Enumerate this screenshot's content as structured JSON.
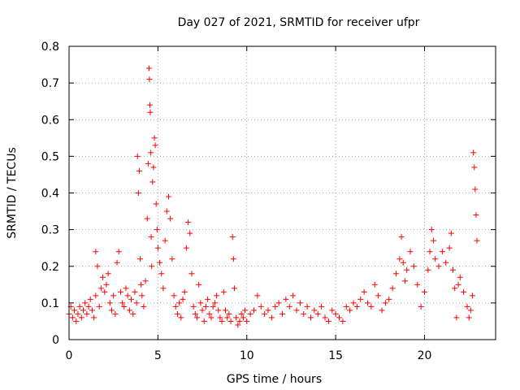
{
  "chart_data": {
    "type": "scatter",
    "title": "Day 027 of 2021, SRMTID for receiver ufpr",
    "xlabel": "GPS time / hours",
    "ylabel": "SRMTID / TECUs",
    "xlim": [
      0,
      24
    ],
    "ylim": [
      0,
      0.8
    ],
    "grid": true,
    "xticks": [
      0,
      5,
      10,
      15,
      20
    ],
    "yticks": [
      0,
      0.1,
      0.2,
      0.3,
      0.4,
      0.5,
      0.6,
      0.7,
      0.8
    ],
    "xtick_labels": [
      "0",
      "5",
      "10",
      "15",
      "20"
    ],
    "ytick_labels": [
      "0",
      "0.1",
      "0.2",
      "0.3",
      "0.4",
      "0.5",
      "0.6",
      "0.7",
      "0.8"
    ],
    "colors": {
      "series": "#ff0000",
      "grid": "#a0a0a0",
      "axis": "#000000"
    },
    "series": [
      {
        "name": "SRMTID",
        "marker": "+",
        "points": [
          [
            0.0,
            0.07
          ],
          [
            0.1,
            0.09
          ],
          [
            0.2,
            0.06
          ],
          [
            0.3,
            0.08
          ],
          [
            0.4,
            0.05
          ],
          [
            0.5,
            0.07
          ],
          [
            0.6,
            0.09
          ],
          [
            0.7,
            0.06
          ],
          [
            0.8,
            0.08
          ],
          [
            0.9,
            0.1
          ],
          [
            1.0,
            0.07
          ],
          [
            1.1,
            0.09
          ],
          [
            1.2,
            0.11
          ],
          [
            1.3,
            0.08
          ],
          [
            1.4,
            0.06
          ],
          [
            1.5,
            0.12
          ],
          [
            1.5,
            0.24
          ],
          [
            1.6,
            0.2
          ],
          [
            1.7,
            0.09
          ],
          [
            1.8,
            0.14
          ],
          [
            1.9,
            0.17
          ],
          [
            2.0,
            0.13
          ],
          [
            2.1,
            0.15
          ],
          [
            2.2,
            0.18
          ],
          [
            2.3,
            0.1
          ],
          [
            2.4,
            0.08
          ],
          [
            2.5,
            0.12
          ],
          [
            2.6,
            0.07
          ],
          [
            2.7,
            0.21
          ],
          [
            2.8,
            0.24
          ],
          [
            2.9,
            0.13
          ],
          [
            3.0,
            0.1
          ],
          [
            3.1,
            0.09
          ],
          [
            3.2,
            0.14
          ],
          [
            3.3,
            0.12
          ],
          [
            3.4,
            0.08
          ],
          [
            3.5,
            0.11
          ],
          [
            3.6,
            0.07
          ],
          [
            3.7,
            0.13
          ],
          [
            3.8,
            0.1
          ],
          [
            3.85,
            0.5
          ],
          [
            3.9,
            0.4
          ],
          [
            3.95,
            0.46
          ],
          [
            4.0,
            0.22
          ],
          [
            4.05,
            0.15
          ],
          [
            4.1,
            0.12
          ],
          [
            4.2,
            0.09
          ],
          [
            4.3,
            0.16
          ],
          [
            4.4,
            0.33
          ],
          [
            4.45,
            0.48
          ],
          [
            4.5,
            0.74
          ],
          [
            4.52,
            0.71
          ],
          [
            4.55,
            0.64
          ],
          [
            4.57,
            0.62
          ],
          [
            4.6,
            0.51
          ],
          [
            4.62,
            0.28
          ],
          [
            4.65,
            0.2
          ],
          [
            4.7,
            0.43
          ],
          [
            4.75,
            0.47
          ],
          [
            4.8,
            0.55
          ],
          [
            4.85,
            0.53
          ],
          [
            4.9,
            0.37
          ],
          [
            4.95,
            0.3
          ],
          [
            5.0,
            0.25
          ],
          [
            5.1,
            0.21
          ],
          [
            5.2,
            0.18
          ],
          [
            5.3,
            0.14
          ],
          [
            5.4,
            0.27
          ],
          [
            5.5,
            0.35
          ],
          [
            5.6,
            0.39
          ],
          [
            5.7,
            0.33
          ],
          [
            5.8,
            0.22
          ],
          [
            5.9,
            0.12
          ],
          [
            6.0,
            0.09
          ],
          [
            6.1,
            0.07
          ],
          [
            6.2,
            0.1
          ],
          [
            6.3,
            0.06
          ],
          [
            6.4,
            0.11
          ],
          [
            6.5,
            0.13
          ],
          [
            6.6,
            0.25
          ],
          [
            6.7,
            0.32
          ],
          [
            6.8,
            0.29
          ],
          [
            6.9,
            0.18
          ],
          [
            7.0,
            0.09
          ],
          [
            7.1,
            0.07
          ],
          [
            7.2,
            0.06
          ],
          [
            7.3,
            0.15
          ],
          [
            7.4,
            0.1
          ],
          [
            7.5,
            0.08
          ],
          [
            7.6,
            0.05
          ],
          [
            7.7,
            0.09
          ],
          [
            7.8,
            0.11
          ],
          [
            7.9,
            0.07
          ],
          [
            8.0,
            0.06
          ],
          [
            8.1,
            0.09
          ],
          [
            8.2,
            0.1
          ],
          [
            8.3,
            0.12
          ],
          [
            8.4,
            0.08
          ],
          [
            8.5,
            0.06
          ],
          [
            8.6,
            0.05
          ],
          [
            8.7,
            0.13
          ],
          [
            8.8,
            0.08
          ],
          [
            8.9,
            0.06
          ],
          [
            9.0,
            0.07
          ],
          [
            9.1,
            0.05
          ],
          [
            9.2,
            0.28
          ],
          [
            9.25,
            0.22
          ],
          [
            9.3,
            0.14
          ],
          [
            9.4,
            0.06
          ],
          [
            9.5,
            0.04
          ],
          [
            9.6,
            0.05
          ],
          [
            9.7,
            0.07
          ],
          [
            9.8,
            0.06
          ],
          [
            9.9,
            0.08
          ],
          [
            10.0,
            0.05
          ],
          [
            10.2,
            0.07
          ],
          [
            10.4,
            0.08
          ],
          [
            10.6,
            0.12
          ],
          [
            10.8,
            0.09
          ],
          [
            11.0,
            0.07
          ],
          [
            11.2,
            0.08
          ],
          [
            11.4,
            0.06
          ],
          [
            11.6,
            0.09
          ],
          [
            11.8,
            0.1
          ],
          [
            12.0,
            0.07
          ],
          [
            12.2,
            0.11
          ],
          [
            12.4,
            0.09
          ],
          [
            12.6,
            0.12
          ],
          [
            12.8,
            0.08
          ],
          [
            13.0,
            0.1
          ],
          [
            13.2,
            0.07
          ],
          [
            13.4,
            0.09
          ],
          [
            13.6,
            0.06
          ],
          [
            13.8,
            0.08
          ],
          [
            14.0,
            0.07
          ],
          [
            14.2,
            0.09
          ],
          [
            14.4,
            0.06
          ],
          [
            14.6,
            0.05
          ],
          [
            14.8,
            0.08
          ],
          [
            15.0,
            0.07
          ],
          [
            15.2,
            0.06
          ],
          [
            15.4,
            0.05
          ],
          [
            15.6,
            0.09
          ],
          [
            15.8,
            0.08
          ],
          [
            16.0,
            0.1
          ],
          [
            16.2,
            0.09
          ],
          [
            16.4,
            0.11
          ],
          [
            16.6,
            0.13
          ],
          [
            16.8,
            0.1
          ],
          [
            17.0,
            0.09
          ],
          [
            17.2,
            0.15
          ],
          [
            17.4,
            0.12
          ],
          [
            17.6,
            0.08
          ],
          [
            17.8,
            0.1
          ],
          [
            18.0,
            0.11
          ],
          [
            18.2,
            0.14
          ],
          [
            18.4,
            0.18
          ],
          [
            18.6,
            0.22
          ],
          [
            18.7,
            0.28
          ],
          [
            18.8,
            0.21
          ],
          [
            18.9,
            0.16
          ],
          [
            19.0,
            0.19
          ],
          [
            19.2,
            0.24
          ],
          [
            19.4,
            0.2
          ],
          [
            19.6,
            0.15
          ],
          [
            19.8,
            0.09
          ],
          [
            20.0,
            0.13
          ],
          [
            20.2,
            0.19
          ],
          [
            20.3,
            0.24
          ],
          [
            20.4,
            0.3
          ],
          [
            20.5,
            0.27
          ],
          [
            20.6,
            0.22
          ],
          [
            20.8,
            0.2
          ],
          [
            21.0,
            0.24
          ],
          [
            21.2,
            0.21
          ],
          [
            21.4,
            0.25
          ],
          [
            21.5,
            0.29
          ],
          [
            21.6,
            0.19
          ],
          [
            21.7,
            0.14
          ],
          [
            21.8,
            0.06
          ],
          [
            21.9,
            0.15
          ],
          [
            22.0,
            0.17
          ],
          [
            22.2,
            0.13
          ],
          [
            22.4,
            0.09
          ],
          [
            22.5,
            0.06
          ],
          [
            22.6,
            0.08
          ],
          [
            22.7,
            0.12
          ],
          [
            22.75,
            0.51
          ],
          [
            22.8,
            0.47
          ],
          [
            22.85,
            0.41
          ],
          [
            22.9,
            0.34
          ],
          [
            22.95,
            0.27
          ]
        ]
      }
    ]
  }
}
